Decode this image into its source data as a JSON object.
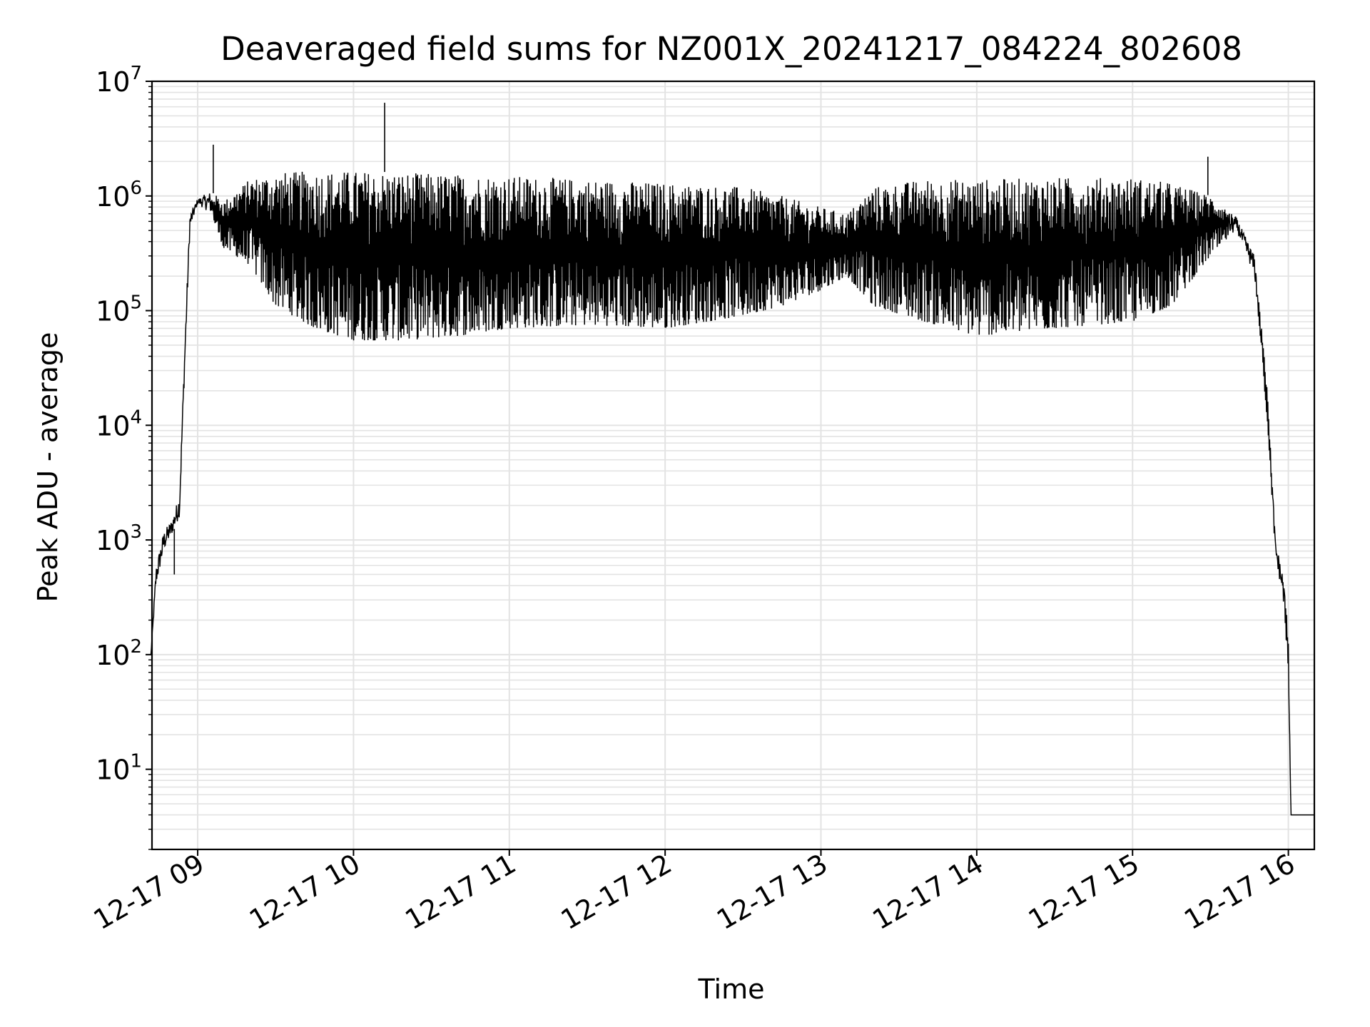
{
  "chart_data": {
    "type": "line",
    "title": "Deaveraged field sums for NZ001X_20241217_084224_802608",
    "xlabel": "Time",
    "ylabel": "Peak ADU - average",
    "y_scale": "log",
    "ylim": [
      2,
      10000000
    ],
    "xlim": [
      "2024-12-17 08:42:24",
      "2024-12-17 16:10:00"
    ],
    "x_ticks": [
      {
        "t": "2024-12-17 09:00",
        "label": "12-17 09"
      },
      {
        "t": "2024-12-17 10:00",
        "label": "12-17 10"
      },
      {
        "t": "2024-12-17 11:00",
        "label": "12-17 11"
      },
      {
        "t": "2024-12-17 12:00",
        "label": "12-17 12"
      },
      {
        "t": "2024-12-17 13:00",
        "label": "12-17 13"
      },
      {
        "t": "2024-12-17 14:00",
        "label": "12-17 14"
      },
      {
        "t": "2024-12-17 15:00",
        "label": "12-17 15"
      },
      {
        "t": "2024-12-17 16:00",
        "label": "12-17 16"
      }
    ],
    "y_ticks": [
      {
        "value": 10,
        "base": "10",
        "exp": "1"
      },
      {
        "value": 100,
        "base": "10",
        "exp": "2"
      },
      {
        "value": 1000,
        "base": "10",
        "exp": "3"
      },
      {
        "value": 10000,
        "base": "10",
        "exp": "4"
      },
      {
        "value": 100000,
        "base": "10",
        "exp": "5"
      },
      {
        "value": 1000000,
        "base": "10",
        "exp": "6"
      },
      {
        "value": 10000000,
        "base": "10",
        "exp": "7"
      }
    ],
    "grid": true,
    "grid_minor": true,
    "line_color": "#000000",
    "series": [
      {
        "envelope": [
          {
            "t": "2024-12-17 08:42",
            "low": 100,
            "high": 100
          },
          {
            "t": "2024-12-17 08:44",
            "low": 400,
            "high": 600
          },
          {
            "t": "2024-12-17 08:47",
            "low": 800,
            "high": 1200
          },
          {
            "t": "2024-12-17 08:50",
            "low": 1100,
            "high": 1500
          },
          {
            "t": "2024-12-17 08:53",
            "low": 1600,
            "high": 2500
          },
          {
            "t": "2024-12-17 08:55",
            "low": 30000,
            "high": 50000
          },
          {
            "t": "2024-12-17 08:57",
            "low": 500000,
            "high": 700000
          },
          {
            "t": "2024-12-17 09:00",
            "low": 850000,
            "high": 950000
          },
          {
            "t": "2024-12-17 09:05",
            "low": 700000,
            "high": 1100000
          },
          {
            "t": "2024-12-17 09:10",
            "low": 350000,
            "high": 900000
          },
          {
            "t": "2024-12-17 09:20",
            "low": 250000,
            "high": 1400000
          },
          {
            "t": "2024-12-17 09:30",
            "low": 110000,
            "high": 1600000
          },
          {
            "t": "2024-12-17 09:45",
            "low": 70000,
            "high": 1650000
          },
          {
            "t": "2024-12-17 10:00",
            "low": 55000,
            "high": 1650000
          },
          {
            "t": "2024-12-17 10:20",
            "low": 55000,
            "high": 1600000
          },
          {
            "t": "2024-12-17 10:40",
            "low": 60000,
            "high": 1550000
          },
          {
            "t": "2024-12-17 11:00",
            "low": 70000,
            "high": 1500000
          },
          {
            "t": "2024-12-17 11:30",
            "low": 75000,
            "high": 1400000
          },
          {
            "t": "2024-12-17 12:00",
            "low": 70000,
            "high": 1300000
          },
          {
            "t": "2024-12-17 12:30",
            "low": 90000,
            "high": 1200000
          },
          {
            "t": "2024-12-17 12:45",
            "low": 110000,
            "high": 1000000
          },
          {
            "t": "2024-12-17 13:00",
            "low": 150000,
            "high": 800000
          },
          {
            "t": "2024-12-17 13:10",
            "low": 200000,
            "high": 700000
          },
          {
            "t": "2024-12-17 13:20",
            "low": 110000,
            "high": 1200000
          },
          {
            "t": "2024-12-17 13:40",
            "low": 80000,
            "high": 1400000
          },
          {
            "t": "2024-12-17 14:00",
            "low": 60000,
            "high": 1400000
          },
          {
            "t": "2024-12-17 14:30",
            "low": 70000,
            "high": 1450000
          },
          {
            "t": "2024-12-17 15:00",
            "low": 80000,
            "high": 1450000
          },
          {
            "t": "2024-12-17 15:15",
            "low": 110000,
            "high": 1300000
          },
          {
            "t": "2024-12-17 15:30",
            "low": 300000,
            "high": 1000000
          },
          {
            "t": "2024-12-17 15:40",
            "low": 500000,
            "high": 650000
          },
          {
            "t": "2024-12-17 15:47",
            "low": 200000,
            "high": 300000
          },
          {
            "t": "2024-12-17 15:52",
            "low": 10000,
            "high": 20000
          },
          {
            "t": "2024-12-17 15:55",
            "low": 700,
            "high": 1000
          },
          {
            "t": "2024-12-17 15:58",
            "low": 300,
            "high": 500
          },
          {
            "t": "2024-12-17 16:00",
            "low": 70,
            "high": 150
          },
          {
            "t": "2024-12-17 16:01",
            "low": 4,
            "high": 4
          },
          {
            "t": "2024-12-17 16:10",
            "low": 4,
            "high": 4
          }
        ],
        "spikes": [
          {
            "t": "2024-12-17 09:06",
            "value": 2800000
          },
          {
            "t": "2024-12-17 10:12",
            "value": 6500000
          },
          {
            "t": "2024-12-17 15:29",
            "value": 2200000
          },
          {
            "t": "2024-12-17 08:51",
            "value": 500
          }
        ]
      }
    ]
  }
}
